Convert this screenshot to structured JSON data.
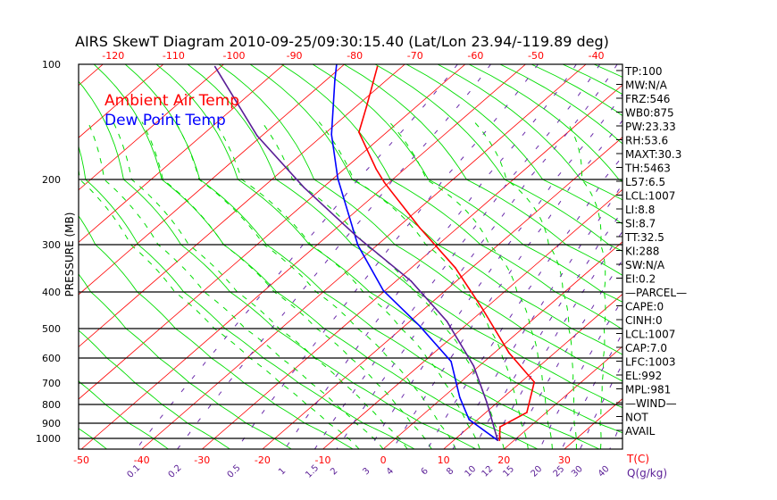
{
  "chart_data": {
    "type": "line",
    "title": "AIRS SkewT Diagram 2010-09-25/09:30:15.40 (Lat/Lon 23.94/-119.89 deg)",
    "ylabel": "PRESSURE (MB)",
    "xlabel": "T(C)",
    "mixing_ratio_label": "Q(g/kg)",
    "y_ticks": [
      100,
      200,
      300,
      400,
      500,
      600,
      700,
      800,
      900,
      1000
    ],
    "top_temp_ticks": [
      -120,
      -110,
      -100,
      -90,
      -80,
      -70,
      -60,
      -50,
      -40
    ],
    "bottom_temp_ticks": [
      -50,
      -40,
      -30,
      -20,
      -10,
      0,
      10,
      20,
      30
    ],
    "mixing_ratio_ticks": [
      "0.1",
      "0.2",
      "0.5",
      "1",
      "1.5",
      "2",
      "3",
      "4",
      "6",
      "8",
      "10",
      "12",
      "15",
      "20",
      "25",
      "30",
      "40"
    ],
    "legend": [
      "Ambient Air Temp",
      "Dew Point Temp"
    ],
    "colors": {
      "temp": "#ff0000",
      "dew": "#0000ff",
      "parcel": "#5a1e96",
      "dry_adiabat": "#00dd00",
      "mixing": "#6a2aaa",
      "isotherm": "#ff0000"
    },
    "series": [
      {
        "name": "Ambient Air Temp",
        "points": [
          [
            1013,
            17.6
          ],
          [
            924,
            15.1
          ],
          [
            843,
            16.8
          ],
          [
            696,
            12.2
          ],
          [
            582,
            2.4
          ],
          [
            444,
            -10.6
          ],
          [
            349,
            -22.7
          ],
          [
            274,
            -36.3
          ],
          [
            205,
            -50.7
          ],
          [
            191,
            -54.7
          ],
          [
            159,
            -64.6
          ],
          [
            137,
            -68.2
          ],
          [
            102,
            -74.1
          ]
        ]
      },
      {
        "name": "Dew Point Temp",
        "points": [
          [
            1013,
            17.3
          ],
          [
            881,
            8.6
          ],
          [
            767,
            2.8
          ],
          [
            614,
            -5.5
          ],
          [
            493,
            -17.5
          ],
          [
            397,
            -30.3
          ],
          [
            301,
            -43.2
          ],
          [
            253,
            -50.7
          ],
          [
            199,
            -59.3
          ],
          [
            161,
            -68.7
          ],
          [
            114,
            -78.5
          ],
          [
            100,
            -81.3
          ]
        ]
      },
      {
        "name": "Parcel",
        "points": [
          [
            1013,
            17.3
          ],
          [
            788,
            8.1
          ],
          [
            632,
            -0.9
          ],
          [
            480,
            -13.9
          ],
          [
            377,
            -27.5
          ],
          [
            288,
            -44.9
          ],
          [
            212,
            -63.2
          ],
          [
            162,
            -80.8
          ],
          [
            102,
            -101
          ]
        ]
      }
    ],
    "stats": [
      "TP:100",
      "MW:N/A",
      "FRZ:546",
      "WB0:875",
      "PW:23.33",
      "RH:53.6",
      "MAXT:30.3",
      "TH:5463",
      "L57:6.5",
      "LCL:1007",
      "LI:8.8",
      "SI:8.7",
      "TT:32.5",
      "KI:288",
      "SW:N/A",
      "EI:0.2",
      "—PARCEL—",
      "CAPE:0",
      "CINH:0",
      "LCL:1007",
      "CAP:7.0",
      "LFC:1003",
      "EL:992",
      "MPL:981",
      "—WIND—",
      "NOT",
      "AVAIL"
    ]
  }
}
